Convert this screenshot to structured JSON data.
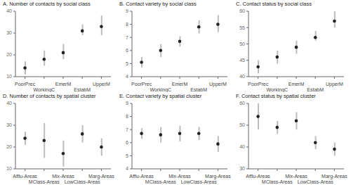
{
  "chart_data": [
    {
      "type": "scatter",
      "title": "A. Number of contacts by social class",
      "categories": [
        "PoorPrec",
        "WorkingC",
        "EmerM",
        "EstabM",
        "UpperM"
      ],
      "values": [
        14,
        18,
        21,
        31,
        33
      ],
      "ci_low": [
        11,
        15,
        18,
        29,
        29
      ],
      "ci_high": [
        17,
        22,
        25,
        34,
        38
      ],
      "ylim": [
        10,
        40
      ],
      "yticks": [
        10,
        20,
        30,
        40
      ],
      "color": "#222222",
      "grid": false
    },
    {
      "type": "scatter",
      "title": "B. Contact variety by social class",
      "categories": [
        "PoorPrec",
        "WorkingC",
        "EmerM",
        "EstabM",
        "UpperM"
      ],
      "values": [
        5.1,
        6.0,
        6.7,
        7.8,
        8.0
      ],
      "ci_low": [
        4.7,
        5.5,
        6.3,
        7.3,
        7.4
      ],
      "ci_high": [
        5.5,
        6.5,
        7.1,
        8.3,
        8.7
      ],
      "ylim": [
        4,
        9
      ],
      "yticks": [
        4,
        5,
        6,
        7,
        8,
        9
      ],
      "color": "#222222",
      "grid": false
    },
    {
      "type": "scatter",
      "title": "C. Contact status by social class",
      "categories": [
        "PoorPrec",
        "WorkingC",
        "EmerM",
        "EstabM",
        "UpperM"
      ],
      "values": [
        43,
        46,
        49,
        52,
        57
      ],
      "ci_low": [
        41,
        44,
        47,
        51,
        55
      ],
      "ci_high": [
        45,
        48,
        51,
        54,
        60
      ],
      "ylim": [
        40,
        60
      ],
      "yticks": [
        40,
        45,
        50,
        55,
        60
      ],
      "color": "#222222",
      "grid": false
    },
    {
      "type": "scatter",
      "title": "D. Number of contacts by spatial cluster",
      "categories": [
        "Afflu-Areas",
        "MClass-Areas",
        "Mix-Areas",
        "LowClass-Areas",
        "Marg-Areas"
      ],
      "values": [
        24,
        23,
        17,
        26,
        20
      ],
      "ci_low": [
        21,
        15,
        11,
        22,
        16
      ],
      "ci_high": [
        27,
        31,
        23,
        30,
        24
      ],
      "ylim": [
        10,
        40
      ],
      "yticks": [
        10,
        20,
        30,
        40
      ],
      "color": "#222222",
      "grid": false
    },
    {
      "type": "scatter",
      "title": "E. Contact variety by spatial cluster",
      "categories": [
        "Afflu-Areas",
        "MClass-Areas",
        "Mix-Areas",
        "LowClass-Areas",
        "Marg-Areas"
      ],
      "values": [
        6.7,
        6.6,
        6.7,
        6.7,
        5.9
      ],
      "ci_low": [
        6.3,
        6.0,
        6.1,
        6.2,
        5.3
      ],
      "ci_high": [
        7.1,
        7.2,
        7.3,
        7.2,
        6.5
      ],
      "ylim": [
        4,
        9
      ],
      "yticks": [
        4,
        5,
        6,
        7,
        8,
        9
      ],
      "color": "#222222",
      "grid": false
    },
    {
      "type": "scatter",
      "title": "F. Contact status by spatial cluster",
      "categories": [
        "Afflu-Areas",
        "MClass-Areas",
        "Mix-Areas",
        "LowClass-Areas",
        "Marg-Areas"
      ],
      "values": [
        54,
        49,
        52,
        42,
        39
      ],
      "ci_low": [
        48,
        46,
        48,
        39,
        36
      ],
      "ci_high": [
        60,
        52,
        56,
        45,
        42
      ],
      "ylim": [
        30,
        60
      ],
      "yticks": [
        30,
        40,
        50,
        60
      ],
      "color": "#222222",
      "grid": false
    }
  ]
}
